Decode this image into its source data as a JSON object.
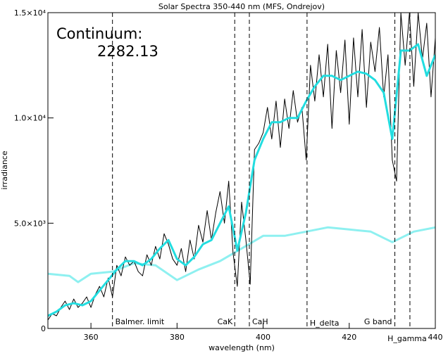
{
  "chart_data": {
    "type": "line",
    "title": "Solar Spectra 350-440 nm (MFS, Ondrejov)",
    "x_label": "wavelength (nm)",
    "y_label": "irradiance",
    "annotations": [
      "Continuum:",
      "2282.13"
    ],
    "xlim": [
      350,
      440
    ],
    "ylim": [
      0,
      15000
    ],
    "xticks": [
      360,
      380,
      400,
      420,
      440
    ],
    "yticks": [
      0,
      {
        "value": 5000,
        "label": "5.0×10³"
      },
      {
        "value": 10000,
        "label": "1.0×10⁴"
      },
      {
        "value": 15000,
        "label": "1.5×10⁴"
      }
    ],
    "lines": [
      {
        "x": 365,
        "label": "Balmer. limit"
      },
      {
        "x": 393.4,
        "label": "CaK"
      },
      {
        "x": 396.8,
        "label": "CaH"
      },
      {
        "x": 410.2,
        "label": "H_delta"
      },
      {
        "x": 430.6,
        "label": "G band"
      },
      {
        "x": 434.1,
        "label": "H_gamma"
      }
    ],
    "series": [
      {
        "color": "#8ef0f0",
        "width": 3,
        "x": [
          350,
          355,
          357,
          360,
          365,
          370,
          375,
          380,
          385,
          390,
          395,
          400,
          405,
          410,
          415,
          420,
          425,
          430,
          435,
          440
        ],
        "values": [
          2600,
          2500,
          2200,
          2600,
          2700,
          3100,
          3000,
          2300,
          2800,
          3200,
          3800,
          4400,
          4400,
          4600,
          4800,
          4700,
          4600,
          4100,
          4600,
          4800
        ]
      },
      {
        "color": "#000000",
        "width": 1,
        "x": [
          350,
          351,
          352,
          353,
          354,
          355,
          356,
          357,
          358,
          359,
          360,
          361,
          362,
          363,
          364,
          365,
          366,
          367,
          368,
          369,
          370,
          371,
          372,
          373,
          374,
          375,
          376,
          377,
          378,
          379,
          380,
          381,
          382,
          383,
          384,
          385,
          386,
          387,
          388,
          389,
          390,
          391,
          392,
          393,
          394,
          395,
          396,
          397,
          398,
          399,
          400,
          401,
          402,
          403,
          404,
          405,
          406,
          407,
          408,
          409,
          410,
          411,
          412,
          413,
          414,
          415,
          416,
          417,
          418,
          419,
          420,
          421,
          422,
          423,
          424,
          425,
          426,
          427,
          428,
          429,
          430,
          431,
          432,
          433,
          434,
          435,
          436,
          437,
          438,
          439,
          440
        ],
        "values": [
          400,
          700,
          600,
          1000,
          1300,
          900,
          1400,
          1000,
          1200,
          1500,
          1000,
          1600,
          2000,
          1500,
          2400,
          1500,
          3000,
          2500,
          3400,
          3000,
          3200,
          2700,
          2500,
          3500,
          3000,
          3900,
          3300,
          4500,
          4000,
          3300,
          3000,
          3800,
          2700,
          4200,
          3300,
          4900,
          4100,
          5600,
          4200,
          5500,
          6500,
          5000,
          7000,
          3600,
          2000,
          6000,
          4200,
          2100,
          8500,
          8800,
          9300,
          10500,
          9000,
          10800,
          8600,
          10900,
          9500,
          11300,
          9800,
          10500,
          8000,
          12500,
          10800,
          13000,
          11000,
          13500,
          9500,
          13200,
          11200,
          13700,
          9700,
          13800,
          11000,
          14200,
          10500,
          13600,
          12200,
          14300,
          11000,
          13000,
          8000,
          7000,
          15000,
          12500,
          15000,
          11500,
          15000,
          12800,
          14500,
          11000,
          13800
        ]
      },
      {
        "color": "#22dde0",
        "width": 3,
        "x": [
          350,
          352,
          354,
          356,
          358,
          360,
          362,
          364,
          366,
          368,
          370,
          372,
          374,
          376,
          378,
          380,
          382,
          384,
          386,
          388,
          390,
          392,
          394,
          396,
          398,
          400,
          402,
          404,
          406,
          408,
          410,
          412,
          414,
          416,
          418,
          420,
          422,
          424,
          426,
          428,
          430,
          432,
          434,
          436,
          438,
          440
        ],
        "values": [
          600,
          800,
          1100,
          1200,
          1100,
          1300,
          1800,
          2300,
          2800,
          3200,
          3200,
          3000,
          3300,
          3800,
          4200,
          3300,
          3000,
          3400,
          4000,
          4200,
          5000,
          5800,
          3700,
          5500,
          8000,
          9000,
          9800,
          9800,
          10000,
          10000,
          10800,
          11500,
          12000,
          12000,
          11800,
          12000,
          12200,
          12100,
          11800,
          11200,
          9000,
          13200,
          13200,
          13500,
          12000,
          13000
        ]
      }
    ]
  }
}
